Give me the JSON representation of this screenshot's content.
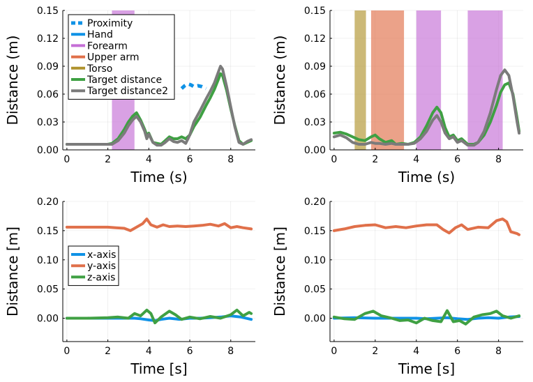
{
  "chart_data": [
    {
      "type": "line",
      "panel": "top-left",
      "xlabel": "Time (s)",
      "ylabel": "Distance (m)",
      "xlim": [
        -0.2,
        9.2
      ],
      "ylim": [
        0,
        0.15
      ],
      "xticks": [
        0,
        2,
        4,
        6,
        8
      ],
      "yticks": [
        0.0,
        0.03,
        0.06,
        0.09,
        0.12,
        0.15
      ],
      "ytick_labels": [
        "0.00",
        "0.03",
        "0.06",
        "0.09",
        "0.12",
        "0.15"
      ],
      "grid": true,
      "legend_position": "top-left",
      "legend": [
        {
          "name": "Proximity",
          "color": "#0f92e6",
          "style": "dashed-line"
        },
        {
          "name": "Hand",
          "color": "#0f92e6",
          "style": "line"
        },
        {
          "name": "Forearm",
          "color": "#c56fd6",
          "style": "line"
        },
        {
          "name": "Upper arm",
          "color": "#e0704a",
          "style": "line"
        },
        {
          "name": "Torso",
          "color": "#b0932e",
          "style": "line"
        },
        {
          "name": "Target distance",
          "color": "#3fa043",
          "style": "line"
        },
        {
          "name": "Target distance2",
          "color": "#7b7b7b",
          "style": "line"
        }
      ],
      "spans": [
        {
          "name": "Forearm",
          "x0": 2.2,
          "x1": 3.3,
          "color": "#c56fd6"
        }
      ],
      "series": [
        {
          "name": "Proximity",
          "color": "#0f92e6",
          "dashed": true,
          "x": [
            5.6,
            5.75,
            5.9,
            6.05,
            6.2,
            6.4,
            6.6,
            6.8
          ],
          "y": [
            0.066,
            0.069,
            0.071,
            0.07,
            0.068,
            0.069,
            0.068,
            0.066
          ]
        },
        {
          "name": "Target distance",
          "color": "#3fa043",
          "x": [
            0,
            0.5,
            1.0,
            1.5,
            2.0,
            2.2,
            2.5,
            2.8,
            3.0,
            3.2,
            3.4,
            3.6,
            3.8,
            3.9,
            4.0,
            4.2,
            4.4,
            4.6,
            4.8,
            5.0,
            5.2,
            5.4,
            5.6,
            5.8,
            6.0,
            6.2,
            6.5,
            6.8,
            7.0,
            7.2,
            7.4,
            7.5,
            7.6,
            7.8,
            8.0,
            8.2,
            8.4,
            8.6,
            8.8,
            9.0
          ],
          "y": [
            0.006,
            0.006,
            0.006,
            0.006,
            0.006,
            0.007,
            0.012,
            0.022,
            0.03,
            0.036,
            0.04,
            0.032,
            0.022,
            0.016,
            0.018,
            0.008,
            0.007,
            0.006,
            0.01,
            0.014,
            0.012,
            0.012,
            0.014,
            0.012,
            0.016,
            0.025,
            0.035,
            0.048,
            0.056,
            0.065,
            0.076,
            0.082,
            0.08,
            0.064,
            0.044,
            0.026,
            0.01,
            0.006,
            0.008,
            0.01
          ]
        },
        {
          "name": "Target distance2",
          "color": "#7b7b7b",
          "x": [
            0,
            0.5,
            1.0,
            1.5,
            2.0,
            2.2,
            2.5,
            2.8,
            3.0,
            3.2,
            3.4,
            3.6,
            3.8,
            3.9,
            4.0,
            4.2,
            4.4,
            4.6,
            4.8,
            5.0,
            5.2,
            5.4,
            5.6,
            5.8,
            6.0,
            6.2,
            6.5,
            6.8,
            7.0,
            7.2,
            7.4,
            7.5,
            7.6,
            7.8,
            8.0,
            8.2,
            8.4,
            8.6,
            8.8,
            9.0
          ],
          "y": [
            0.006,
            0.006,
            0.006,
            0.006,
            0.006,
            0.006,
            0.01,
            0.018,
            0.026,
            0.032,
            0.036,
            0.03,
            0.02,
            0.012,
            0.017,
            0.008,
            0.005,
            0.005,
            0.008,
            0.012,
            0.009,
            0.008,
            0.01,
            0.007,
            0.016,
            0.03,
            0.042,
            0.055,
            0.063,
            0.072,
            0.084,
            0.09,
            0.087,
            0.068,
            0.046,
            0.025,
            0.008,
            0.006,
            0.009,
            0.011
          ]
        }
      ]
    },
    {
      "type": "line",
      "panel": "top-right",
      "xlabel": "Time (s)",
      "ylabel": "Distance (m)",
      "xlim": [
        -0.2,
        9.2
      ],
      "ylim": [
        0,
        0.15
      ],
      "xticks": [
        0,
        2,
        4,
        6,
        8
      ],
      "yticks": [
        0.0,
        0.03,
        0.06,
        0.09,
        0.12,
        0.15
      ],
      "ytick_labels": [
        "0.00",
        "0.03",
        "0.06",
        "0.09",
        "0.12",
        "0.15"
      ],
      "grid": true,
      "spans": [
        {
          "name": "Torso",
          "x0": 1.0,
          "x1": 1.55,
          "color": "#b0932e"
        },
        {
          "name": "Upper arm",
          "x0": 1.8,
          "x1": 3.4,
          "color": "#e0704a"
        },
        {
          "name": "Forearm",
          "x0": 4.0,
          "x1": 5.2,
          "color": "#c56fd6"
        },
        {
          "name": "Forearm",
          "x0": 6.5,
          "x1": 8.2,
          "color": "#c56fd6"
        }
      ],
      "series": [
        {
          "name": "Target distance",
          "color": "#3fa043",
          "x": [
            0,
            0.3,
            0.6,
            0.9,
            1.2,
            1.5,
            1.8,
            2.0,
            2.2,
            2.5,
            2.8,
            3.0,
            3.3,
            3.6,
            3.9,
            4.2,
            4.5,
            4.8,
            5.0,
            5.2,
            5.4,
            5.6,
            5.8,
            6.0,
            6.2,
            6.5,
            6.8,
            7.0,
            7.3,
            7.6,
            7.9,
            8.1,
            8.3,
            8.5,
            8.7,
            8.9,
            9.0
          ],
          "y": [
            0.018,
            0.019,
            0.017,
            0.014,
            0.011,
            0.01,
            0.014,
            0.016,
            0.012,
            0.008,
            0.01,
            0.006,
            0.007,
            0.006,
            0.008,
            0.014,
            0.026,
            0.04,
            0.046,
            0.04,
            0.024,
            0.014,
            0.016,
            0.01,
            0.012,
            0.006,
            0.006,
            0.008,
            0.016,
            0.03,
            0.048,
            0.062,
            0.07,
            0.072,
            0.06,
            0.034,
            0.02
          ]
        },
        {
          "name": "Target distance2",
          "color": "#7b7b7b",
          "x": [
            0,
            0.3,
            0.6,
            0.9,
            1.2,
            1.5,
            1.8,
            2.0,
            2.2,
            2.5,
            2.8,
            3.0,
            3.3,
            3.6,
            3.9,
            4.2,
            4.5,
            4.8,
            5.0,
            5.2,
            5.4,
            5.6,
            5.8,
            6.0,
            6.2,
            6.5,
            6.8,
            7.0,
            7.3,
            7.6,
            7.9,
            8.1,
            8.3,
            8.5,
            8.7,
            8.9,
            9.0
          ],
          "y": [
            0.014,
            0.016,
            0.013,
            0.008,
            0.006,
            0.006,
            0.008,
            0.007,
            0.007,
            0.006,
            0.007,
            0.006,
            0.006,
            0.006,
            0.007,
            0.012,
            0.02,
            0.032,
            0.037,
            0.03,
            0.018,
            0.012,
            0.014,
            0.008,
            0.01,
            0.005,
            0.005,
            0.008,
            0.02,
            0.04,
            0.065,
            0.08,
            0.086,
            0.08,
            0.058,
            0.03,
            0.018
          ]
        }
      ]
    },
    {
      "type": "line",
      "panel": "bottom-left",
      "xlabel": "Time [s]",
      "ylabel": "Distance [m]",
      "xlim": [
        -0.2,
        9.2
      ],
      "ylim": [
        -0.04,
        0.2
      ],
      "xticks": [
        0,
        2,
        4,
        6,
        8
      ],
      "yticks": [
        0.0,
        0.05,
        0.1,
        0.15,
        0.2
      ],
      "ytick_labels": [
        "0.00",
        "0.05",
        "0.10",
        "0.15",
        "0.20"
      ],
      "grid": true,
      "legend_position": "left",
      "legend": [
        {
          "name": "x-axis",
          "color": "#0f92e6",
          "style": "line"
        },
        {
          "name": "y-axis",
          "color": "#e0704a",
          "style": "line"
        },
        {
          "name": "z-axis",
          "color": "#3fa043",
          "style": "line"
        }
      ],
      "series": [
        {
          "name": "x-axis",
          "color": "#0f92e6",
          "x": [
            0,
            1,
            2,
            3,
            3.3,
            3.6,
            4.0,
            4.3,
            4.6,
            5.0,
            5.5,
            6.0,
            6.5,
            7.0,
            7.5,
            8.0,
            8.5,
            9.0
          ],
          "y": [
            0.0,
            0.0,
            0.0,
            0.0,
            0.0,
            -0.001,
            -0.003,
            -0.004,
            -0.002,
            0.0,
            -0.002,
            0.0,
            0.0,
            0.001,
            0.002,
            0.004,
            0.002,
            -0.002
          ]
        },
        {
          "name": "y-axis",
          "color": "#e0704a",
          "x": [
            0,
            0.5,
            1,
            1.5,
            2,
            2.4,
            2.8,
            3.1,
            3.4,
            3.7,
            3.9,
            4.1,
            4.4,
            4.7,
            5.0,
            5.4,
            5.8,
            6.2,
            6.6,
            7.0,
            7.4,
            7.7,
            8.0,
            8.3,
            8.6,
            9.0
          ],
          "y": [
            0.156,
            0.156,
            0.156,
            0.156,
            0.156,
            0.155,
            0.154,
            0.15,
            0.156,
            0.162,
            0.17,
            0.16,
            0.156,
            0.16,
            0.157,
            0.158,
            0.157,
            0.158,
            0.159,
            0.161,
            0.158,
            0.162,
            0.155,
            0.157,
            0.155,
            0.153
          ]
        },
        {
          "name": "z-axis",
          "color": "#3fa043",
          "x": [
            0,
            1,
            2,
            2.5,
            3.0,
            3.3,
            3.6,
            3.9,
            4.1,
            4.3,
            4.6,
            5.0,
            5.3,
            5.6,
            6.0,
            6.5,
            7.0,
            7.5,
            8.0,
            8.3,
            8.6,
            8.9,
            9.0
          ],
          "y": [
            0.0,
            0.0,
            0.001,
            0.002,
            0.0,
            0.008,
            0.004,
            0.014,
            0.008,
            -0.008,
            0.002,
            0.012,
            0.006,
            -0.002,
            0.002,
            -0.001,
            0.003,
            0.0,
            0.006,
            0.014,
            0.004,
            0.01,
            0.008
          ]
        }
      ]
    },
    {
      "type": "line",
      "panel": "bottom-right",
      "xlabel": "Time [s]",
      "ylabel": "Distance [m]",
      "xlim": [
        -0.2,
        9.2
      ],
      "ylim": [
        -0.04,
        0.2
      ],
      "xticks": [
        0,
        2,
        4,
        6,
        8
      ],
      "yticks": [
        0.0,
        0.05,
        0.1,
        0.15,
        0.2
      ],
      "ytick_labels": [
        "0.00",
        "0.05",
        "0.10",
        "0.15",
        "0.20"
      ],
      "grid": true,
      "series": [
        {
          "name": "x-axis",
          "color": "#0f92e6",
          "x": [
            0,
            1,
            2,
            3,
            4,
            4.5,
            5.0,
            5.5,
            6.0,
            6.5,
            7.0,
            7.5,
            8.0,
            8.5,
            9.0
          ],
          "y": [
            0.0,
            0.001,
            0.0,
            0.0,
            0.0,
            -0.001,
            0.0,
            0.001,
            -0.001,
            -0.002,
            0.0,
            0.001,
            0.0,
            0.002,
            0.003
          ]
        },
        {
          "name": "y-axis",
          "color": "#e0704a",
          "x": [
            0,
            0.5,
            1.0,
            1.5,
            2.0,
            2.5,
            3.0,
            3.5,
            4.0,
            4.5,
            5.0,
            5.3,
            5.6,
            5.9,
            6.2,
            6.5,
            7.0,
            7.5,
            7.9,
            8.2,
            8.4,
            8.6,
            8.9,
            9.0
          ],
          "y": [
            0.15,
            0.153,
            0.157,
            0.159,
            0.16,
            0.155,
            0.157,
            0.155,
            0.158,
            0.16,
            0.16,
            0.152,
            0.146,
            0.155,
            0.16,
            0.152,
            0.156,
            0.155,
            0.167,
            0.17,
            0.165,
            0.148,
            0.145,
            0.143
          ]
        },
        {
          "name": "z-axis",
          "color": "#3fa043",
          "x": [
            0,
            0.5,
            1.0,
            1.5,
            1.9,
            2.3,
            2.8,
            3.2,
            3.6,
            4.0,
            4.4,
            4.8,
            5.2,
            5.5,
            5.8,
            6.1,
            6.4,
            6.8,
            7.2,
            7.6,
            7.9,
            8.2,
            8.6,
            9.0
          ],
          "y": [
            0.002,
            -0.001,
            -0.002,
            0.008,
            0.012,
            0.004,
            0.0,
            -0.004,
            -0.003,
            -0.008,
            0.0,
            -0.004,
            -0.006,
            0.013,
            -0.006,
            -0.004,
            -0.01,
            0.002,
            0.006,
            0.008,
            0.012,
            0.004,
            0.0,
            0.004
          ]
        }
      ]
    }
  ]
}
